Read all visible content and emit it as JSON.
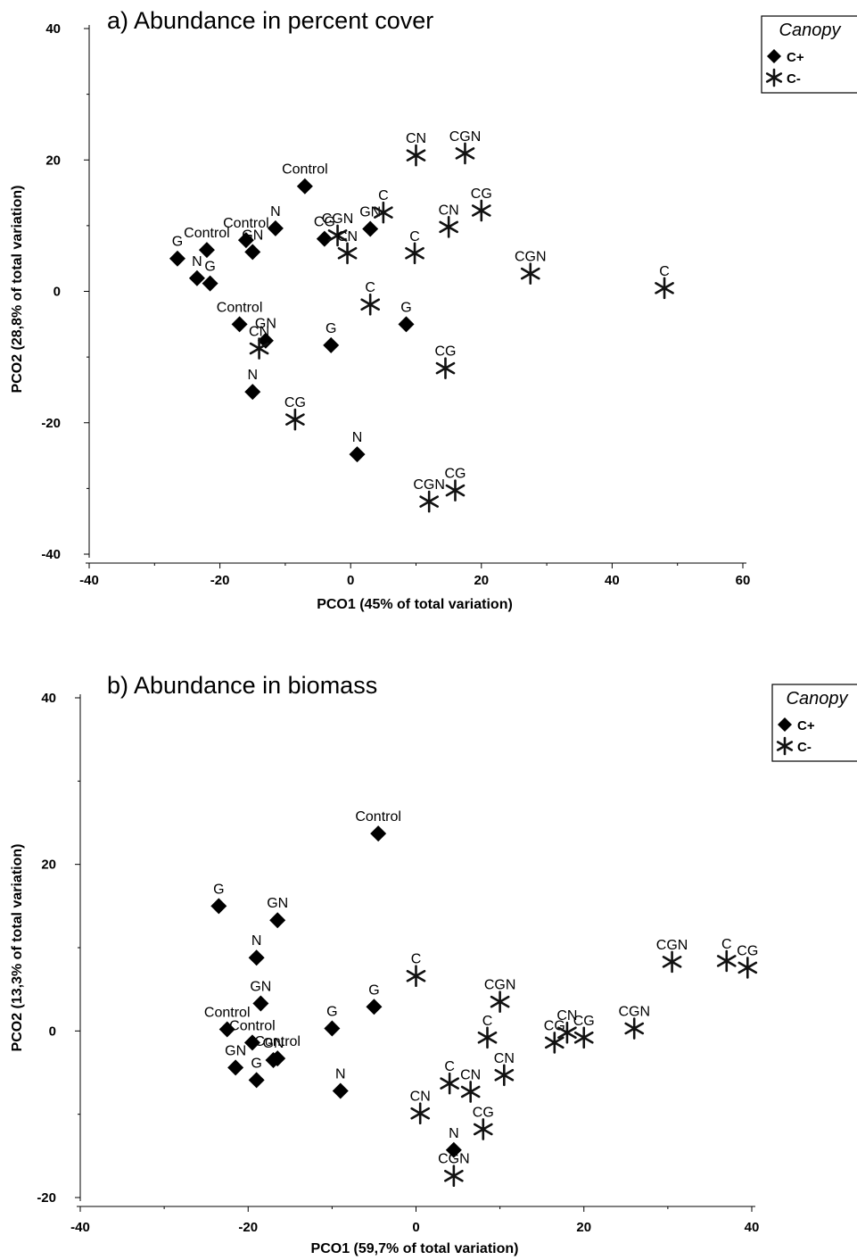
{
  "chart_data": [
    {
      "type": "scatter",
      "title": "a) Abundance in percent cover",
      "xlabel": "PCO1 (45% of total variation)",
      "ylabel": "PCO2 (28,8% of total variation)",
      "xlim": [
        -40,
        60
      ],
      "ylim": [
        -40,
        40
      ],
      "xticks": [
        "-40",
        "-20",
        "0",
        "20",
        "40",
        "60"
      ],
      "yticks": [
        "40",
        "20",
        "0",
        "-20",
        "-40"
      ],
      "legend": {
        "title": "Canopy",
        "position": "top-right",
        "entries": [
          {
            "name": "C+",
            "marker": "diamond"
          },
          {
            "name": "C-",
            "marker": "asterisk"
          }
        ]
      },
      "series": [
        {
          "name": "C+",
          "marker": "diamond",
          "points": [
            {
              "x": -7,
              "y": 16,
              "label": "Control"
            },
            {
              "x": -22,
              "y": 6.3,
              "label": "Control"
            },
            {
              "x": -16,
              "y": 7.8,
              "label": "Control"
            },
            {
              "x": -17,
              "y": -5,
              "label": "Control"
            },
            {
              "x": -26.5,
              "y": 5,
              "label": "G"
            },
            {
              "x": -23.5,
              "y": 2,
              "label": "N"
            },
            {
              "x": -21.5,
              "y": 1.2,
              "label": "G"
            },
            {
              "x": -15,
              "y": 6,
              "label": "GN"
            },
            {
              "x": -11.5,
              "y": 9.6,
              "label": "N"
            },
            {
              "x": -13,
              "y": -7.5,
              "label": "GN"
            },
            {
              "x": -15,
              "y": -15.3,
              "label": "N"
            },
            {
              "x": -4,
              "y": 8,
              "label": "CG"
            },
            {
              "x": 3,
              "y": 9.5,
              "label": "GN"
            },
            {
              "x": -3,
              "y": -8.2,
              "label": "G"
            },
            {
              "x": 8.5,
              "y": -5,
              "label": "G"
            },
            {
              "x": 1,
              "y": -24.8,
              "label": "N"
            }
          ]
        },
        {
          "name": "C-",
          "marker": "asterisk",
          "points": [
            {
              "x": 10,
              "y": 20.7,
              "label": "CN"
            },
            {
              "x": 17.5,
              "y": 21,
              "label": "CGN"
            },
            {
              "x": 5,
              "y": 12,
              "label": "C"
            },
            {
              "x": -2,
              "y": 8.5,
              "label": "CGN"
            },
            {
              "x": -0.5,
              "y": 5.8,
              "label": "CN"
            },
            {
              "x": 9.8,
              "y": 5.8,
              "label": "C"
            },
            {
              "x": 15,
              "y": 9.8,
              "label": "CN"
            },
            {
              "x": 20,
              "y": 12.3,
              "label": "CG"
            },
            {
              "x": 27.5,
              "y": 2.7,
              "label": "CGN"
            },
            {
              "x": 48,
              "y": 0.5,
              "label": "C"
            },
            {
              "x": 3,
              "y": -2,
              "label": "C"
            },
            {
              "x": -14,
              "y": -8.7,
              "label": "CN"
            },
            {
              "x": 14.5,
              "y": -11.7,
              "label": "CG"
            },
            {
              "x": -8.5,
              "y": -19.5,
              "label": "CG"
            },
            {
              "x": 12,
              "y": -32,
              "label": "CGN"
            },
            {
              "x": 16,
              "y": -30.3,
              "label": "CG"
            }
          ]
        }
      ]
    },
    {
      "type": "scatter",
      "title": "b) Abundance in biomass",
      "xlabel": "PCO1 (59,7% of total variation)",
      "ylabel": "PCO2 (13,3% of total variation)",
      "xlim": [
        -40,
        40
      ],
      "ylim": [
        -20,
        40
      ],
      "xticks": [
        "-40",
        "-20",
        "0",
        "20",
        "40"
      ],
      "yticks": [
        "40",
        "20",
        "0",
        "-20"
      ],
      "legend": {
        "title": "Canopy",
        "position": "top-right",
        "entries": [
          {
            "name": "C+",
            "marker": "diamond"
          },
          {
            "name": "C-",
            "marker": "asterisk"
          }
        ]
      },
      "series": [
        {
          "name": "C+",
          "marker": "diamond",
          "points": [
            {
              "x": -4.5,
              "y": 23.7,
              "label": "Control"
            },
            {
              "x": -23.5,
              "y": 15,
              "label": "G"
            },
            {
              "x": -16.5,
              "y": 13.3,
              "label": "GN"
            },
            {
              "x": -19,
              "y": 8.8,
              "label": "N"
            },
            {
              "x": -18.5,
              "y": 3.3,
              "label": "GN"
            },
            {
              "x": -22.5,
              "y": 0.2,
              "label": "Control"
            },
            {
              "x": -19.5,
              "y": -1.4,
              "label": "Control"
            },
            {
              "x": -16.5,
              "y": -3.3,
              "label": "Control"
            },
            {
              "x": -17,
              "y": -3.5,
              "label": "GN"
            },
            {
              "x": -21.5,
              "y": -4.4,
              "label": "GN"
            },
            {
              "x": -19,
              "y": -5.9,
              "label": "G"
            },
            {
              "x": -10,
              "y": 0.3,
              "label": "G"
            },
            {
              "x": -5,
              "y": 2.9,
              "label": "G"
            },
            {
              "x": -9,
              "y": -7.2,
              "label": "N"
            },
            {
              "x": 4.5,
              "y": -14.3,
              "label": "N"
            }
          ]
        },
        {
          "name": "C-",
          "marker": "asterisk",
          "points": [
            {
              "x": 0,
              "y": 6.6,
              "label": "C"
            },
            {
              "x": 10,
              "y": 3.5,
              "label": "CGN"
            },
            {
              "x": 8.5,
              "y": -0.8,
              "label": "C"
            },
            {
              "x": 10.5,
              "y": -5.3,
              "label": "CN"
            },
            {
              "x": 4,
              "y": -6.3,
              "label": "C"
            },
            {
              "x": 6.5,
              "y": -7.3,
              "label": "CN"
            },
            {
              "x": 0.5,
              "y": -9.9,
              "label": "CN"
            },
            {
              "x": 8,
              "y": -11.8,
              "label": "CG"
            },
            {
              "x": 4.5,
              "y": -17.4,
              "label": "CGN"
            },
            {
              "x": 16.5,
              "y": -1.4,
              "label": "CG"
            },
            {
              "x": 18,
              "y": -0.2,
              "label": "CN"
            },
            {
              "x": 20,
              "y": -0.8,
              "label": "CG"
            },
            {
              "x": 26,
              "y": 0.3,
              "label": "CGN"
            },
            {
              "x": 30.5,
              "y": 8.3,
              "label": "CGN"
            },
            {
              "x": 37,
              "y": 8.4,
              "label": "C"
            },
            {
              "x": 39.5,
              "y": 7.6,
              "label": "CG"
            }
          ]
        }
      ]
    }
  ]
}
